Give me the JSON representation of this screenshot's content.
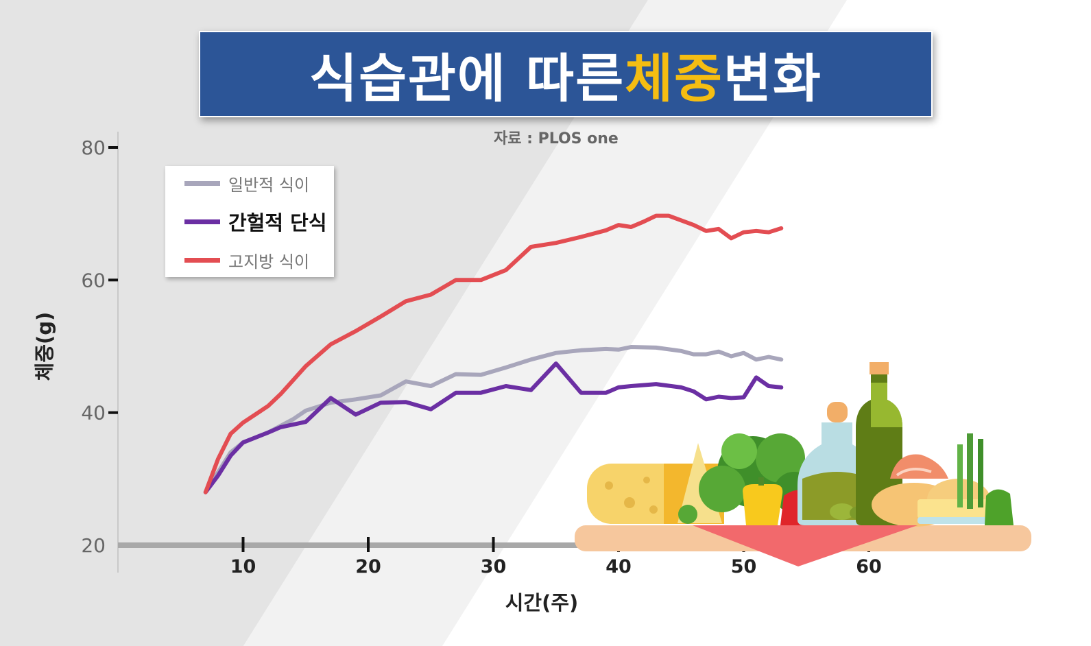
{
  "title": {
    "part1": "식습관에 따른 ",
    "highlight": "체중",
    "part2": "변화"
  },
  "source": "자료 : PLOS one",
  "colors": {
    "banner": "#2c5597",
    "highlight": "#f5bd12",
    "normal": "#a8a6bb",
    "fasting": "#6b2fa3",
    "highfat": "#e34d52"
  },
  "icons": [
    "food-illustration"
  ],
  "chart_data": {
    "type": "line",
    "xlabel": "시간(주)",
    "ylabel": "체중(g)",
    "xlim": [
      0,
      70
    ],
    "ylim": [
      20,
      80
    ],
    "x_ticks": [
      10,
      20,
      30,
      40,
      50,
      60
    ],
    "y_ticks": [
      20,
      40,
      60,
      80
    ],
    "legend_position": "top-left",
    "series": [
      {
        "name": "일반적 식이",
        "points": [
          [
            7,
            28
          ],
          [
            8,
            31
          ],
          [
            9,
            34
          ],
          [
            10,
            35.5
          ],
          [
            12,
            37
          ],
          [
            14,
            39
          ],
          [
            15,
            40.3
          ],
          [
            17,
            41.5
          ],
          [
            19,
            42
          ],
          [
            21,
            42.6
          ],
          [
            23,
            44.7
          ],
          [
            25,
            44
          ],
          [
            27,
            45.8
          ],
          [
            29,
            45.7
          ],
          [
            31,
            46.8
          ],
          [
            33,
            48
          ],
          [
            35,
            49
          ],
          [
            37,
            49.4
          ],
          [
            39,
            49.6
          ],
          [
            40,
            49.5
          ],
          [
            41,
            49.9
          ],
          [
            43,
            49.8
          ],
          [
            45,
            49.3
          ],
          [
            46,
            48.8
          ],
          [
            47,
            48.8
          ],
          [
            48,
            49.2
          ],
          [
            49,
            48.5
          ],
          [
            50,
            49
          ],
          [
            51,
            48
          ],
          [
            52,
            48.4
          ],
          [
            53,
            48
          ]
        ]
      },
      {
        "name": "간헐적 단식",
        "points": [
          [
            7,
            28
          ],
          [
            8,
            30.5
          ],
          [
            9,
            33.5
          ],
          [
            10,
            35.5
          ],
          [
            12,
            37
          ],
          [
            13,
            37.8
          ],
          [
            15,
            38.6
          ],
          [
            17,
            42.2
          ],
          [
            19,
            39.7
          ],
          [
            21,
            41.5
          ],
          [
            23,
            41.6
          ],
          [
            25,
            40.5
          ],
          [
            27,
            43
          ],
          [
            29,
            43
          ],
          [
            31,
            44
          ],
          [
            33,
            43.4
          ],
          [
            35,
            47.4
          ],
          [
            37,
            43
          ],
          [
            39,
            43
          ],
          [
            40,
            43.8
          ],
          [
            41,
            44
          ],
          [
            43,
            44.3
          ],
          [
            45,
            43.8
          ],
          [
            46,
            43.2
          ],
          [
            47,
            42
          ],
          [
            48,
            42.4
          ],
          [
            49,
            42.2
          ],
          [
            50,
            42.3
          ],
          [
            51,
            45.3
          ],
          [
            52,
            44
          ],
          [
            53,
            43.8
          ]
        ]
      },
      {
        "name": "고지방 식이",
        "points": [
          [
            7,
            28
          ],
          [
            8,
            33
          ],
          [
            9,
            36.8
          ],
          [
            10,
            38.5
          ],
          [
            12,
            41
          ],
          [
            13,
            42.8
          ],
          [
            15,
            47
          ],
          [
            17,
            50.3
          ],
          [
            19,
            52.3
          ],
          [
            21,
            54.5
          ],
          [
            23,
            56.8
          ],
          [
            25,
            57.8
          ],
          [
            27,
            60
          ],
          [
            29,
            60
          ],
          [
            31,
            61.5
          ],
          [
            33,
            65
          ],
          [
            35,
            65.6
          ],
          [
            37,
            66.5
          ],
          [
            39,
            67.5
          ],
          [
            40,
            68.3
          ],
          [
            41,
            68
          ],
          [
            42,
            68.8
          ],
          [
            43,
            69.7
          ],
          [
            44,
            69.7
          ],
          [
            46,
            68.3
          ],
          [
            47,
            67.4
          ],
          [
            48,
            67.7
          ],
          [
            49,
            66.3
          ],
          [
            50,
            67.2
          ],
          [
            51,
            67.4
          ],
          [
            52,
            67.2
          ],
          [
            53,
            67.8
          ]
        ]
      }
    ]
  }
}
